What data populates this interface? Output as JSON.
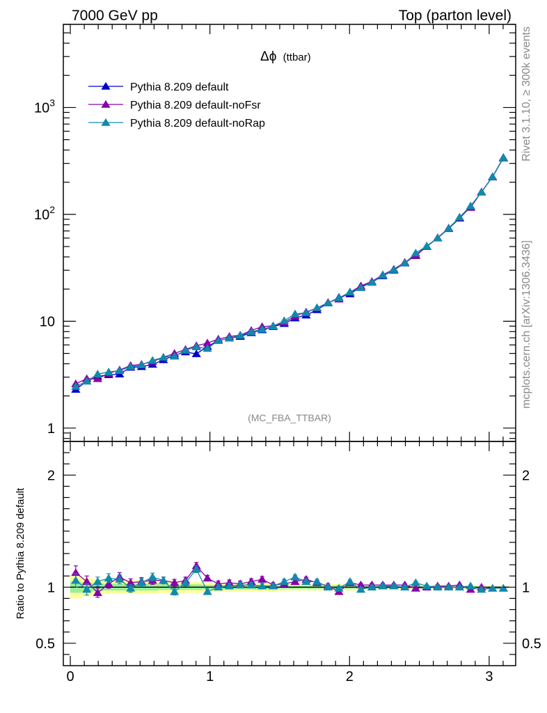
{
  "header": {
    "left": "7000 GeV pp",
    "right": "Top (parton level)"
  },
  "side": {
    "rivet": "Rivet 3.1.10, ≥ 300k events",
    "mcplots": "mcplots.cern.ch [arXiv:1306.3436]"
  },
  "chart_data": {
    "type": "line",
    "title_main": "Δϕ",
    "title_sub": "(ttbar)",
    "watermark": "(MC_FBA_TTBAR)",
    "xlim": [
      -0.05,
      3.19
    ],
    "ylim_main": [
      0.75,
      6000
    ],
    "yscale_main": "log",
    "ylim_ratio": [
      0.3,
      2.3
    ],
    "ylabel_ratio": "Ratio to Pythia 8.209 default",
    "x_ticks": [
      0,
      1,
      2,
      3
    ],
    "x_tick_labels": [
      "0",
      "1",
      "2",
      "3"
    ],
    "y_ticks_main": [
      1,
      10,
      100,
      1000
    ],
    "y_tick_labels_main": [
      "1",
      "10",
      "10^2",
      "10^3"
    ],
    "y_ticks_ratio": [
      0.5,
      1,
      2
    ],
    "y_tick_labels_ratio": [
      "0.5",
      "1",
      "2"
    ],
    "legend_position": "top-left",
    "x": [
      0.039,
      0.118,
      0.196,
      0.275,
      0.353,
      0.432,
      0.51,
      0.589,
      0.667,
      0.746,
      0.825,
      0.903,
      0.982,
      1.06,
      1.139,
      1.217,
      1.296,
      1.374,
      1.453,
      1.532,
      1.61,
      1.689,
      1.767,
      1.846,
      1.924,
      2.003,
      2.081,
      2.16,
      2.238,
      2.317,
      2.396,
      2.474,
      2.553,
      2.631,
      2.71,
      2.788,
      2.867,
      2.945,
      3.024,
      3.102
    ],
    "series": [
      {
        "name": "Pythia 8.209 default",
        "color": "#0000cc",
        "marker_down": false,
        "values": [
          2.3,
          2.75,
          3.05,
          3.15,
          3.2,
          3.7,
          3.75,
          3.95,
          4.35,
          4.8,
          5.15,
          4.95,
          5.8,
          6.6,
          6.95,
          7.2,
          7.8,
          8.3,
          8.9,
          9.5,
          10.7,
          11.4,
          12.8,
          14.8,
          16.7,
          18.0,
          21.0,
          23.1,
          26.6,
          30.0,
          35.0,
          41.6,
          50.0,
          60.0,
          73.5,
          92.0,
          118.0,
          162.0,
          225.0,
          340.0
        ],
        "ratio": [
          1,
          1,
          1,
          1,
          1,
          1,
          1,
          1,
          1,
          1,
          1,
          1,
          1,
          1,
          1,
          1,
          1,
          1,
          1,
          1,
          1,
          1,
          1,
          1,
          1,
          1,
          1,
          1,
          1,
          1,
          1,
          1,
          1,
          1,
          1,
          1,
          1,
          1,
          1,
          1
        ],
        "ratio_err": [
          0.05,
          0.04,
          0.035,
          0.03,
          0.03,
          0.03,
          0.03,
          0.03,
          0.025,
          0.025,
          0.025,
          0.025,
          0.02,
          0.02,
          0.02,
          0.02,
          0.02,
          0.02,
          0.02,
          0.015,
          0.015,
          0.015,
          0.015,
          0.015,
          0.015,
          0.015,
          0.012,
          0.012,
          0.012,
          0.01,
          0.01,
          0.01,
          0.01,
          0.01,
          0.008,
          0.008,
          0.008,
          0.007,
          0.006,
          0.005
        ]
      },
      {
        "name": "Pythia 8.209 default-noFsr",
        "color": "#8800aa",
        "marker_down": true,
        "values": [
          2.6,
          2.9,
          2.9,
          3.25,
          3.5,
          3.85,
          3.95,
          4.2,
          4.6,
          5.0,
          5.45,
          5.9,
          6.25,
          6.8,
          7.2,
          7.4,
          8.2,
          8.9,
          9.05,
          9.75,
          11.2,
          12.2,
          13.3,
          15.0,
          16.1,
          18.7,
          21.4,
          23.6,
          27.2,
          30.7,
          35.6,
          41.0,
          50.0,
          60.5,
          74.5,
          93.5,
          116.0,
          162.0,
          223.0,
          336.0
        ],
        "ratio": [
          1.13,
          1.05,
          0.95,
          1.03,
          1.09,
          1.04,
          1.05,
          1.06,
          1.06,
          1.04,
          1.06,
          1.19,
          1.08,
          1.03,
          1.04,
          1.03,
          1.05,
          1.07,
          1.02,
          1.03,
          1.05,
          1.07,
          1.04,
          1.01,
          0.96,
          1.04,
          1.02,
          1.02,
          1.02,
          1.02,
          1.02,
          0.99,
          1.0,
          1.01,
          1.01,
          1.02,
          0.98,
          1.0,
          0.99,
          0.99
        ],
        "ratio_err": [
          0.06,
          0.05,
          0.04,
          0.04,
          0.04,
          0.035,
          0.035,
          0.035,
          0.03,
          0.03,
          0.03,
          0.03,
          0.025,
          0.025,
          0.025,
          0.025,
          0.025,
          0.025,
          0.02,
          0.02,
          0.02,
          0.02,
          0.02,
          0.02,
          0.02,
          0.015,
          0.015,
          0.015,
          0.015,
          0.012,
          0.012,
          0.012,
          0.012,
          0.012,
          0.01,
          0.01,
          0.01,
          0.008,
          0.007,
          0.006
        ]
      },
      {
        "name": "Pythia 8.209 default-noRap",
        "color": "#118aaa",
        "marker_down": false,
        "values": [
          2.45,
          2.75,
          3.2,
          3.35,
          3.45,
          3.75,
          3.9,
          4.3,
          4.6,
          4.7,
          5.35,
          5.75,
          5.55,
          6.6,
          6.95,
          7.35,
          7.95,
          8.4,
          9.0,
          10.1,
          11.7,
          12.0,
          13.4,
          14.8,
          16.5,
          18.8,
          20.6,
          23.2,
          27.0,
          30.3,
          35.1,
          43.5,
          50.6,
          60.2,
          74.0,
          94.1,
          120.0,
          161.0,
          224.0,
          338.0
        ],
        "ratio": [
          1.06,
          0.98,
          1.05,
          1.08,
          1.07,
          0.99,
          1.04,
          1.09,
          1.06,
          0.96,
          1.04,
          1.16,
          0.96,
          1.0,
          1.01,
          1.02,
          1.02,
          1.01,
          1.01,
          1.05,
          1.09,
          1.05,
          1.05,
          1.0,
          0.99,
          1.05,
          0.98,
          1.0,
          1.01,
          1.01,
          1.0,
          1.04,
          1.01,
          1.0,
          1.0,
          1.0,
          1.01,
          0.98,
          0.99,
          0.99
        ],
        "ratio_err": [
          0.06,
          0.05,
          0.04,
          0.04,
          0.04,
          0.035,
          0.035,
          0.035,
          0.03,
          0.03,
          0.03,
          0.03,
          0.025,
          0.025,
          0.025,
          0.025,
          0.025,
          0.025,
          0.02,
          0.02,
          0.02,
          0.02,
          0.02,
          0.02,
          0.02,
          0.015,
          0.015,
          0.015,
          0.015,
          0.012,
          0.012,
          0.012,
          0.012,
          0.012,
          0.01,
          0.01,
          0.01,
          0.008,
          0.007,
          0.006
        ]
      }
    ]
  }
}
